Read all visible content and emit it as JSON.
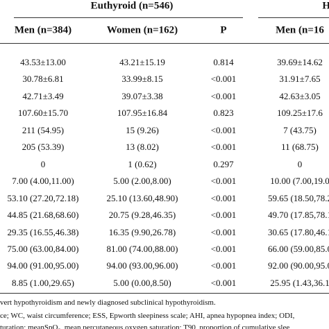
{
  "table": {
    "group_headers": [
      "Euthyroid (n=546)",
      "Hy"
    ],
    "headers": [
      "Men (n=384)",
      "Women (n=162)",
      "P",
      "Men (n=16"
    ],
    "rows": [
      [
        "43.53±13.00",
        "43.21±15.19",
        "0.814",
        "39.69±14.62"
      ],
      [
        "30.78±6.81",
        "33.99±8.15",
        "<0.001",
        "31.91±7.65"
      ],
      [
        "42.71±3.49",
        "39.07±3.38",
        "<0.001",
        "42.63±3.05"
      ],
      [
        "107.60±15.70",
        "107.95±16.84",
        "0.823",
        "109.25±17.6"
      ],
      [
        "211 (54.95)",
        "15 (9.26)",
        "<0.001",
        "7 (43.75)"
      ],
      [
        "205 (53.39)",
        "13 (8.02)",
        "<0.001",
        "11 (68.75)"
      ],
      [
        "0",
        "1 (0.62)",
        "0.297",
        "0"
      ],
      [
        "7.00 (4.00,11.00)",
        "5.00 (2.00,8.00)",
        "<0.001",
        "10.00 (7.00,19.0"
      ],
      [
        "53.10 (27.20,72.18)",
        "25.10 (13.60,48.90)",
        "<0.001",
        "59.65 (18.50,78.2"
      ],
      [
        "44.85 (21.68,68.60)",
        "20.75 (9.28,46.35)",
        "<0.001",
        "49.70 (17.85,78.1"
      ],
      [
        "29.35 (16.55,46.38)",
        "16.35 (9.90,26.78)",
        "<0.001",
        "30.65 (17.80,46.1"
      ],
      [
        "75.00 (63.00,84.00)",
        "81.00 (74.00,88.00)",
        "<0.001",
        "66.00 (59.00,85.0"
      ],
      [
        "94.00 (91.00,95.00)",
        "94.00 (93.00,96.00)",
        "<0.001",
        "92.00 (90.00,95.0"
      ],
      [
        "8.85 (1.00,29.65)",
        "5.00 (0.00,8.50)",
        "<0.001",
        "25.95 (1.43,36.1"
      ]
    ]
  },
  "footnotes": [
    "vert hypothyroidism and newly diagnosed subclinical hypothyroidism.",
    "ce; WC, waist circumference; ESS, Epworth sleepiness scale; AHI, apnea hypopnea index; ODI,",
    "turation; meanSpO₂, mean percutaneous oxygen saturation; T90, proportion of cumulative slee"
  ]
}
